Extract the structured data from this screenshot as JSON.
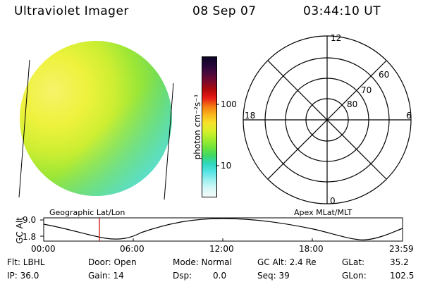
{
  "header": {
    "title": "Ultraviolet Imager",
    "date": "08 Sep 07",
    "time": "03:44:10 UT"
  },
  "colorbar": {
    "unit_label": "photon cm⁻²s⁻¹",
    "ticks": [
      "100",
      "10"
    ],
    "colors": [
      "#0b0422",
      "#26063a",
      "#4a0a3c",
      "#7a0a2a",
      "#b30a0a",
      "#e81c18",
      "#f47a12",
      "#f9b61a",
      "#f7e22b",
      "#d8f02a",
      "#a4ec2e",
      "#6fe43c",
      "#3fd864",
      "#2ed8c0",
      "#58e4e4",
      "#9ef0f0",
      "#d7f7f7",
      "#f4fbfb"
    ]
  },
  "image_labels": {
    "left": "Geographic Lat/Lon",
    "right": "Apex MLat/MLT"
  },
  "polar": {
    "mlt": {
      "top": "12",
      "left": "18",
      "right": "6",
      "bottom": "0"
    },
    "mlat": [
      "60",
      "70",
      "80"
    ]
  },
  "altitude_plot": {
    "ylabel": "GC Alt",
    "yticks": [
      "9.0",
      "1.8"
    ],
    "xticks": [
      "00:00",
      "06:00",
      "12:00",
      "18:00",
      "23:59"
    ],
    "marker_time": "03:44"
  },
  "info": {
    "flt": "Flt: LBHL",
    "ip": "IP: 36.0",
    "door": "Door: Open",
    "gain": "Gain: 14",
    "mode": "Mode: Normal",
    "dsp": "Dsp:",
    "dsp_value": "0.0",
    "gc_alt": "GC Alt: 2.4 Re",
    "seq": "Seq: 39",
    "glat": "GLat:",
    "glat_value": "35.2",
    "glon": "GLon:",
    "glon_value": "102.5"
  }
}
